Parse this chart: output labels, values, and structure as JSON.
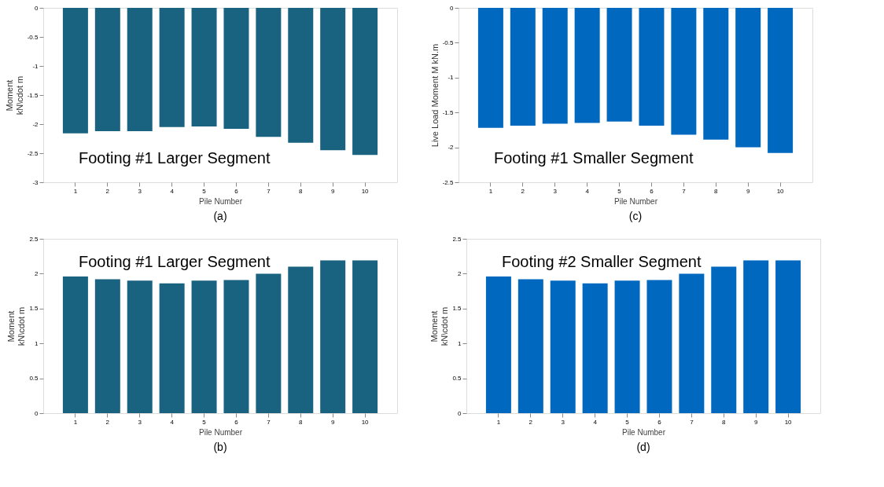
{
  "chart_data": [
    {
      "type": "bar",
      "title": "(a)",
      "xlabel": "Pile Number",
      "ylabel": "Moment\nkN\\cdot m",
      "categories": [
        "1",
        "2",
        "3",
        "4",
        "5",
        "6",
        "7",
        "8",
        "9",
        "10"
      ],
      "series": [
        {
          "color": "#1a6380",
          "values": [
            -2.16,
            -2.12,
            -2.12,
            -2.05,
            -2.04,
            -2.08,
            -2.22,
            -2.32,
            -2.45,
            -2.53
          ]
        }
      ],
      "ylim": [
        -3,
        0
      ],
      "yticks": [
        -3,
        -2.5,
        -2,
        -1.5,
        -1,
        -0.5,
        0
      ],
      "annotations": [
        "Footing #1 Larger Segment"
      ]
    },
    {
      "type": "bar",
      "title": "(c)",
      "xlabel": "Pile Number",
      "ylabel": "Live Load Moment  M kN.m",
      "categories": [
        "1",
        "2",
        "3",
        "4",
        "5",
        "6",
        "7",
        "8",
        "9",
        "10"
      ],
      "series": [
        {
          "color": "#0069bf",
          "values": [
            -1.72,
            -1.69,
            -1.66,
            -1.65,
            -1.63,
            -1.69,
            -1.82,
            -1.89,
            -2.0,
            -2.08
          ]
        }
      ],
      "ylim": [
        -2.5,
        0
      ],
      "yticks": [
        -2.5,
        -2,
        -1.5,
        -1,
        -0.5,
        0
      ],
      "annotations": [
        "Footing #1 Smaller Segment"
      ]
    },
    {
      "type": "bar",
      "title": "(b)",
      "xlabel": "Pile Number",
      "ylabel": "Moment\nkN\\cdot m",
      "categories": [
        "1",
        "2",
        "3",
        "4",
        "5",
        "6",
        "7",
        "8",
        "9",
        "10"
      ],
      "series": [
        {
          "color": "#1a6380",
          "values": [
            1.96,
            1.92,
            1.9,
            1.86,
            1.9,
            1.91,
            2.0,
            2.1,
            2.19,
            2.19
          ]
        }
      ],
      "ylim": [
        0,
        2.5
      ],
      "yticks": [
        0,
        0.5,
        1,
        1.5,
        2,
        2.5
      ],
      "annotations": [
        "Footing #1 Larger Segment"
      ]
    },
    {
      "type": "bar",
      "title": "(d)",
      "xlabel": "Pile Number",
      "ylabel": "Moment\nkN\\cdot m",
      "categories": [
        "1",
        "2",
        "3",
        "4",
        "5",
        "6",
        "7",
        "8",
        "9",
        "10"
      ],
      "series": [
        {
          "color": "#0069bf",
          "values": [
            1.96,
            1.92,
            1.9,
            1.86,
            1.9,
            1.91,
            2.0,
            2.1,
            2.19,
            2.19
          ]
        }
      ],
      "ylim": [
        0,
        2.5
      ],
      "yticks": [
        0,
        0.5,
        1,
        1.5,
        2,
        2.5
      ],
      "annotations": [
        "Footing #2 Smaller Segment"
      ]
    }
  ]
}
